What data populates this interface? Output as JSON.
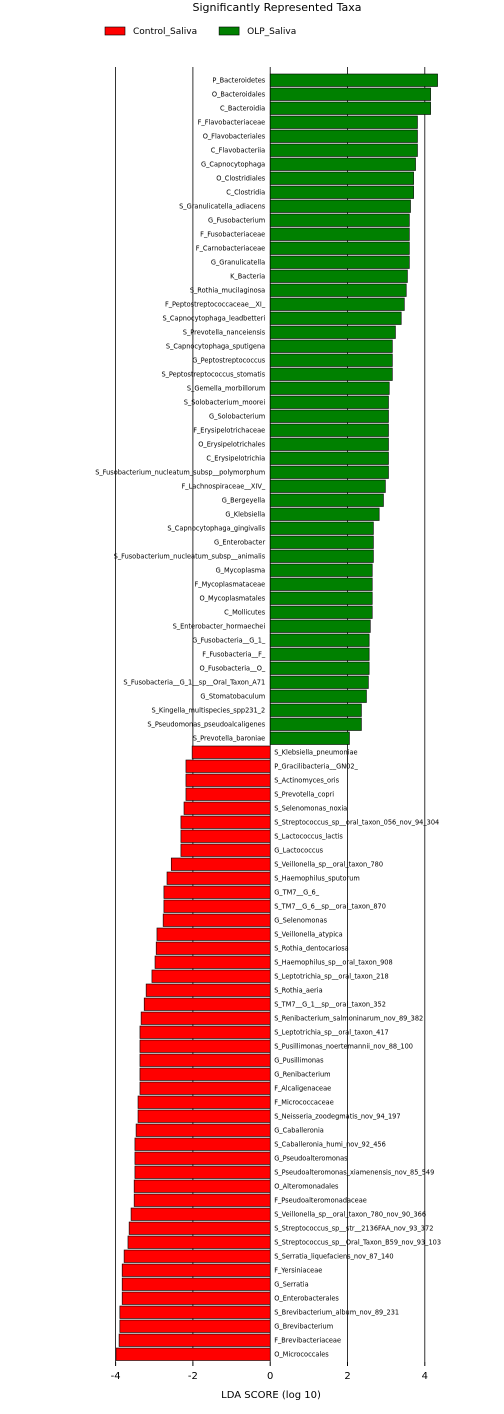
{
  "chart_data": {
    "type": "hbar",
    "title": "Significantly Represented Taxa",
    "x_label": "LDA SCORE (log 10)",
    "xlim": [
      -4.3,
      4.6
    ],
    "xticks": [
      -4,
      -2,
      0,
      2,
      4
    ],
    "grid": true,
    "legend": "top",
    "series": [
      {
        "name": "Control_Saliva",
        "color": "#ff0000",
        "categories": [
          "S_Klebsiella_pneumoniae",
          "P_Gracilibacteria__GN02_",
          "S_Actinomyces_oris",
          "S_Prevotella_copri",
          "S_Selenomonas_noxia",
          "S_Streptococcus_sp__oral_taxon_056_nov_94_304",
          "S_Lactococcus_lactis",
          "G_Lactococcus",
          "S_Veillonella_sp__oral_taxon_780",
          "S_Haemophilus_sputorum",
          "G_TM7__G_6_",
          "S_TM7__G_6__sp__oral_taxon_870",
          "G_Selenomonas",
          "S_Veillonella_atypica",
          "S_Rothia_dentocariosa",
          "S_Haemophilus_sp__oral_taxon_908",
          "S_Leptotrichia_sp__oral_taxon_218",
          "S_Rothia_aeria",
          "S_TM7__G_1__sp__oral_taxon_352",
          "S_Renibacterium_salmoninarum_nov_89_382",
          "S_Leptotrichia_sp__oral_taxon_417",
          "S_Pusillimonas_noertemannii_nov_88_100",
          "G_Pusillimonas",
          "G_Renibacterium",
          "F_Alcaligenaceae",
          "F_Micrococcaceae",
          "S_Neisseria_zoodegmatis_nov_94_197",
          "G_Caballeronia",
          "S_Caballeronia_humi_nov_92_456",
          "G_Pseudoalteromonas",
          "S_Pseudoalteromonas_xiamenensis_nov_85_549",
          "O_Alteromonadales",
          "F_Pseudoalteromonadaceae",
          "S_Veillonella_sp__oral_taxon_780_nov_90_366",
          "S_Streptococcus_sp__str__2136FAA_nov_93_372",
          "S_Streptococcus_sp__Oral_Taxon_B59_nov_93_103",
          "S_Serratia_liquefaciens_nov_87_140",
          "F_Yersiniaceae",
          "G_Serratia",
          "O_Enterobacterales",
          "S_Brevibacterium_album_nov_89_231",
          "G_Brevibacterium",
          "F_Brevibacteriaceae",
          "O_Micrococcales"
        ],
        "values": [
          -2.02,
          -2.18,
          -2.18,
          -2.18,
          -2.23,
          -2.31,
          -2.31,
          -2.31,
          -2.56,
          -2.67,
          -2.75,
          -2.75,
          -2.77,
          -2.93,
          -2.95,
          -2.98,
          -3.06,
          -3.21,
          -3.26,
          -3.34,
          -3.37,
          -3.37,
          -3.37,
          -3.37,
          -3.37,
          -3.42,
          -3.42,
          -3.47,
          -3.5,
          -3.5,
          -3.5,
          -3.52,
          -3.52,
          -3.6,
          -3.65,
          -3.68,
          -3.78,
          -3.83,
          -3.83,
          -3.83,
          -3.89,
          -3.89,
          -3.91,
          -3.99
        ]
      },
      {
        "name": "OLP_Saliva",
        "color": "#008000",
        "categories": [
          "P_Bacteroidetes",
          "O_Bacteroidales",
          "C_Bacteroidia",
          "F_Flavobacteriaceae",
          "O_Flavobacteriales",
          "C_Flavobacteriia",
          "G_Capnocytophaga",
          "O_Clostridiales",
          "C_Clostridia",
          "S_Granulicatella_adiacens",
          "G_Fusobacterium",
          "F_Fusobacteriaceae",
          "F_Carnobacteriaceae",
          "G_Granulicatella",
          "K_Bacteria",
          "S_Rothia_mucilaginosa",
          "F_Peptostreptococcaceae__XI_",
          "S_Capnocytophaga_leadbetteri",
          "S_Prevotella_nanceiensis",
          "S_Capnocytophaga_sputigena",
          "G_Peptostreptococcus",
          "S_Peptostreptococcus_stomatis",
          "S_Gemella_morbillorum",
          "S_Solobacterium_moorei",
          "G_Solobacterium",
          "F_Erysipelotrichaceae",
          "O_Erysipelotrichales",
          "C_Erysipelotrichia",
          "S_Fusobacterium_nucleatum_subsp__polymorphum",
          "F_Lachnospiraceae__XIV_",
          "G_Bergeyella",
          "G_Klebsiella",
          "S_Capnocytophaga_gingivalis",
          "G_Enterobacter",
          "S_Fusobacterium_nucleatum_subsp__animalis",
          "G_Mycoplasma",
          "F_Mycoplasmataceae",
          "O_Mycoplasmatales",
          "C_Mollicutes",
          "S_Enterobacter_hormaechei",
          "G_Fusobacteria__G_1_",
          "F_Fusobacteria__F_",
          "O_Fusobacteria__O_",
          "S_Fusobacteria__G_1__sp__Oral_Taxon_A71",
          "G_Stomatobaculum",
          "S_Kingella_multispecies_spp231_2",
          "S_Pseudomonas_pseudoalcaligenes",
          "S_Prevotella_baroniae"
        ],
        "values": [
          4.33,
          4.15,
          4.15,
          3.81,
          3.81,
          3.81,
          3.76,
          3.71,
          3.71,
          3.63,
          3.6,
          3.6,
          3.6,
          3.6,
          3.55,
          3.52,
          3.47,
          3.39,
          3.24,
          3.16,
          3.16,
          3.16,
          3.08,
          3.06,
          3.06,
          3.06,
          3.06,
          3.06,
          3.06,
          2.98,
          2.93,
          2.82,
          2.67,
          2.67,
          2.67,
          2.64,
          2.64,
          2.64,
          2.64,
          2.59,
          2.56,
          2.56,
          2.56,
          2.54,
          2.49,
          2.36,
          2.36,
          2.05
        ]
      }
    ]
  }
}
